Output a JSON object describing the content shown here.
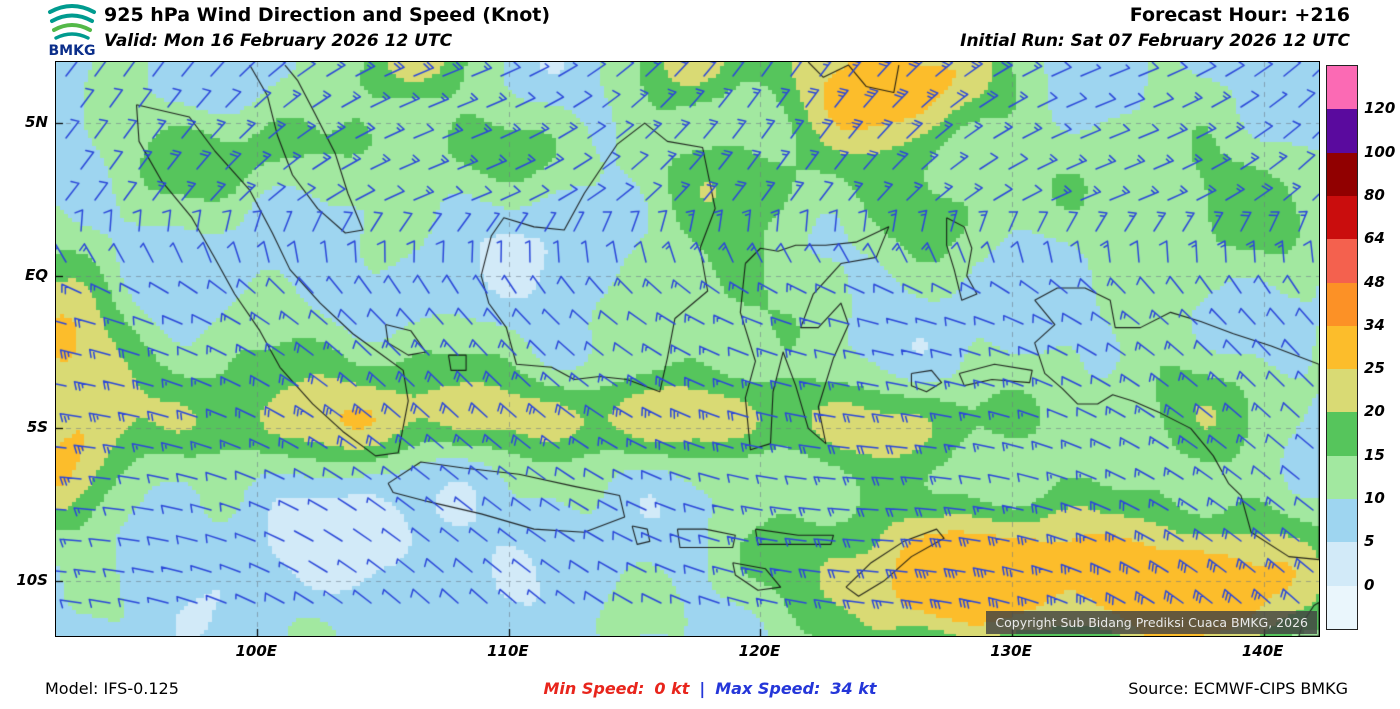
{
  "header": {
    "logo_text": "BMKG",
    "title": "925 hPa Wind Direction and Speed (Knot)",
    "forecast_hour": "Forecast Hour: +216",
    "valid": "Valid: Mon 16 February 2026 12 UTC",
    "initial_run": "Initial Run: Sat 07 February 2026 12 UTC"
  },
  "map": {
    "extent": {
      "lon_min": 92.0,
      "lon_max": 142.2,
      "lat_min": -11.8,
      "lat_max": 7.0
    },
    "lat_labels": [
      {
        "text": "5N",
        "lat": 5
      },
      {
        "text": "EQ",
        "lat": 0
      },
      {
        "text": "5S",
        "lat": -5
      },
      {
        "text": "10S",
        "lat": -10
      }
    ],
    "lon_labels": [
      {
        "text": "100E",
        "lon": 100
      },
      {
        "text": "110E",
        "lon": 110
      },
      {
        "text": "120E",
        "lon": 120
      },
      {
        "text": "130E",
        "lon": 130
      },
      {
        "text": "140E",
        "lon": 140
      }
    ],
    "copyright": "Copyright Sub Bidang Prediksi Cuaca BMKG, 2026",
    "barb_color": "#2b47d9",
    "coast_color": "#111111",
    "wind": {
      "north_from": 52,
      "south_from": 297
    },
    "field": {
      "base": 8,
      "blobs": [
        {
          "lon": 125.0,
          "lat": 6.3,
          "amp": 22,
          "sx": 4.5,
          "sy": 2.2
        },
        {
          "lon": 117.5,
          "lat": 7.2,
          "amp": 14,
          "sx": 2.2,
          "sy": 1.6
        },
        {
          "lon": 106.0,
          "lat": 7.0,
          "amp": 13,
          "sx": 2.6,
          "sy": 1.4
        },
        {
          "lon": 92.2,
          "lat": -2.2,
          "amp": 19,
          "sx": 2.6,
          "sy": 2.4
        },
        {
          "lon": 92.5,
          "lat": -6.6,
          "amp": 16,
          "sx": 2.4,
          "sy": 1.9
        },
        {
          "lon": 100.0,
          "lat": -4.8,
          "amp": 12,
          "sx": 7.0,
          "sy": 1.5
        },
        {
          "lon": 112.0,
          "lat": -4.6,
          "amp": 13,
          "sx": 8.0,
          "sy": 1.4
        },
        {
          "lon": 124.0,
          "lat": -4.9,
          "amp": 12,
          "sx": 7.0,
          "sy": 1.5
        },
        {
          "lon": 128.0,
          "lat": -9.8,
          "amp": 23,
          "sx": 7.0,
          "sy": 2.4
        },
        {
          "lon": 138.0,
          "lat": -10.3,
          "amp": 20,
          "sx": 5.0,
          "sy": 2.6
        },
        {
          "lon": 98.0,
          "lat": 3.9,
          "amp": 9,
          "sx": 5.0,
          "sy": 1.7
        },
        {
          "lon": 108.0,
          "lat": 4.2,
          "amp": 8,
          "sx": 5.0,
          "sy": 1.6
        },
        {
          "lon": 118.0,
          "lat": 3.2,
          "amp": 8,
          "sx": 4.0,
          "sy": 1.6
        },
        {
          "lon": 126.0,
          "lat": 2.2,
          "amp": 8,
          "sx": 3.5,
          "sy": 1.8
        },
        {
          "lon": 138.0,
          "lat": 2.5,
          "amp": 9,
          "sx": 6.0,
          "sy": 2.5
        },
        {
          "lon": 118.0,
          "lat": -0.5,
          "amp": 9,
          "sx": 4.0,
          "sy": 2.5
        },
        {
          "lon": 103.0,
          "lat": -2.8,
          "amp": 7,
          "sx": 6.0,
          "sy": 1.4
        },
        {
          "lon": 137.0,
          "lat": -4.2,
          "amp": 9,
          "sx": 4.0,
          "sy": 2.0
        },
        {
          "lon": 104.0,
          "lat": -8.6,
          "amp": -6,
          "sx": 5.0,
          "sy": 1.8
        },
        {
          "lon": 113.0,
          "lat": 0.4,
          "amp": -5,
          "sx": 3.0,
          "sy": 1.8
        }
      ]
    },
    "coastlines": [
      [
        [
          95.2,
          5.6
        ],
        [
          97.3,
          5.2
        ],
        [
          98.3,
          4.1
        ],
        [
          99.7,
          2.8
        ],
        [
          100.6,
          1.4
        ],
        [
          101.3,
          0.2
        ],
        [
          102.5,
          -0.9
        ],
        [
          103.8,
          -1.9
        ],
        [
          104.8,
          -2.5
        ],
        [
          105.8,
          -3.1
        ],
        [
          106.0,
          -4.1
        ],
        [
          105.6,
          -5.8
        ],
        [
          104.7,
          -5.9
        ],
        [
          103.4,
          -5.1
        ],
        [
          102.2,
          -4.2
        ],
        [
          100.9,
          -3.0
        ],
        [
          100.1,
          -1.8
        ],
        [
          99.1,
          -0.6
        ],
        [
          98.3,
          0.6
        ],
        [
          97.4,
          1.9
        ],
        [
          96.2,
          3.1
        ],
        [
          95.3,
          4.4
        ],
        [
          95.2,
          5.6
        ]
      ],
      [
        [
          105.2,
          -6.8
        ],
        [
          106.5,
          -6.1
        ],
        [
          108.2,
          -6.3
        ],
        [
          110.4,
          -6.5
        ],
        [
          112.6,
          -6.9
        ],
        [
          114.4,
          -7.2
        ],
        [
          114.6,
          -7.9
        ],
        [
          113.0,
          -8.4
        ],
        [
          111.0,
          -8.3
        ],
        [
          108.9,
          -7.8
        ],
        [
          106.8,
          -7.4
        ],
        [
          105.4,
          -7.1
        ],
        [
          105.2,
          -6.8
        ]
      ],
      [
        [
          108.9,
          0.0
        ],
        [
          109.3,
          1.3
        ],
        [
          109.8,
          1.9
        ],
        [
          111.0,
          1.6
        ],
        [
          112.2,
          1.5
        ],
        [
          113.0,
          2.7
        ],
        [
          114.3,
          4.3
        ],
        [
          115.4,
          5.0
        ],
        [
          116.3,
          4.4
        ],
        [
          117.7,
          4.2
        ],
        [
          118.2,
          2.2
        ],
        [
          117.6,
          0.9
        ],
        [
          117.9,
          -0.5
        ],
        [
          116.6,
          -1.4
        ],
        [
          116.3,
          -2.7
        ],
        [
          116.0,
          -3.8
        ],
        [
          114.7,
          -3.4
        ],
        [
          113.6,
          -3.3
        ],
        [
          112.6,
          -3.4
        ],
        [
          111.7,
          -3.0
        ],
        [
          110.3,
          -2.9
        ],
        [
          109.9,
          -1.7
        ],
        [
          109.2,
          -0.9
        ],
        [
          108.9,
          0.0
        ]
      ],
      [
        [
          119.4,
          0.4
        ],
        [
          120.0,
          0.9
        ],
        [
          120.7,
          0.8
        ],
        [
          121.4,
          1.0
        ],
        [
          122.6,
          1.0
        ],
        [
          123.8,
          1.1
        ],
        [
          125.1,
          1.6
        ],
        [
          124.6,
          0.6
        ],
        [
          123.2,
          0.4
        ],
        [
          122.1,
          -0.6
        ],
        [
          121.6,
          -1.7
        ],
        [
          122.3,
          -1.7
        ],
        [
          123.2,
          -0.9
        ],
        [
          123.5,
          -1.6
        ],
        [
          122.9,
          -2.7
        ],
        [
          122.3,
          -4.3
        ],
        [
          122.6,
          -5.5
        ],
        [
          121.9,
          -5.0
        ],
        [
          121.4,
          -3.6
        ],
        [
          120.9,
          -2.5
        ],
        [
          120.5,
          -3.8
        ],
        [
          120.4,
          -5.5
        ],
        [
          119.6,
          -5.7
        ],
        [
          119.4,
          -4.0
        ],
        [
          119.8,
          -2.8
        ],
        [
          119.2,
          -1.2
        ],
        [
          119.4,
          0.4
        ]
      ],
      [
        [
          130.9,
          -0.8
        ],
        [
          131.8,
          -0.4
        ],
        [
          132.9,
          -0.4
        ],
        [
          133.9,
          -0.8
        ],
        [
          134.1,
          -1.7
        ],
        [
          135.1,
          -1.7
        ],
        [
          136.3,
          -1.2
        ],
        [
          137.5,
          -1.5
        ],
        [
          138.8,
          -1.9
        ],
        [
          140.3,
          -2.3
        ],
        [
          142.2,
          -2.9
        ],
        [
          142.2,
          -9.3
        ],
        [
          141.0,
          -9.2
        ],
        [
          139.5,
          -8.4
        ],
        [
          139.1,
          -7.2
        ],
        [
          138.6,
          -6.8
        ],
        [
          138.0,
          -5.9
        ],
        [
          137.1,
          -5.0
        ],
        [
          135.9,
          -4.5
        ],
        [
          134.8,
          -4.1
        ],
        [
          134.0,
          -3.9
        ],
        [
          133.4,
          -4.2
        ],
        [
          132.6,
          -4.2
        ],
        [
          132.0,
          -3.7
        ],
        [
          131.3,
          -3.2
        ],
        [
          130.9,
          -2.2
        ],
        [
          131.7,
          -1.6
        ],
        [
          130.9,
          -0.8
        ]
      ],
      [
        [
          99.7,
          6.9
        ],
        [
          100.4,
          5.9
        ],
        [
          100.8,
          4.6
        ],
        [
          101.4,
          3.3
        ],
        [
          102.4,
          2.2
        ],
        [
          103.5,
          1.4
        ],
        [
          104.2,
          1.5
        ],
        [
          103.6,
          2.7
        ],
        [
          103.1,
          4.0
        ],
        [
          102.3,
          5.3
        ],
        [
          101.6,
          6.4
        ],
        [
          101.1,
          6.9
        ]
      ],
      [
        [
          121.9,
          7.0
        ],
        [
          122.5,
          6.5
        ],
        [
          123.5,
          6.9
        ],
        [
          124.2,
          6.2
        ],
        [
          125.3,
          6.0
        ],
        [
          125.5,
          6.9
        ]
      ],
      [
        [
          114.9,
          -8.2
        ],
        [
          115.5,
          -8.3
        ],
        [
          115.6,
          -8.7
        ],
        [
          115.1,
          -8.8
        ],
        [
          114.9,
          -8.2
        ]
      ],
      [
        [
          116.7,
          -8.3
        ],
        [
          117.8,
          -8.3
        ],
        [
          119.0,
          -8.5
        ],
        [
          118.9,
          -8.9
        ],
        [
          117.6,
          -8.9
        ],
        [
          116.8,
          -8.9
        ],
        [
          116.7,
          -8.3
        ]
      ],
      [
        [
          119.8,
          -8.3
        ],
        [
          121.5,
          -8.5
        ],
        [
          122.9,
          -8.5
        ],
        [
          122.8,
          -8.8
        ],
        [
          121.4,
          -8.8
        ],
        [
          119.9,
          -8.8
        ],
        [
          119.8,
          -8.3
        ]
      ],
      [
        [
          118.9,
          -9.4
        ],
        [
          120.2,
          -9.6
        ],
        [
          120.8,
          -10.2
        ],
        [
          119.9,
          -10.3
        ],
        [
          119.0,
          -9.8
        ],
        [
          118.9,
          -9.4
        ]
      ],
      [
        [
          123.4,
          -10.2
        ],
        [
          124.4,
          -9.4
        ],
        [
          125.7,
          -8.7
        ],
        [
          127.0,
          -8.3
        ],
        [
          127.3,
          -8.6
        ],
        [
          126.0,
          -9.2
        ],
        [
          124.9,
          -10.0
        ],
        [
          123.9,
          -10.5
        ],
        [
          123.4,
          -10.2
        ]
      ],
      [
        [
          127.4,
          1.9
        ],
        [
          128.1,
          1.6
        ],
        [
          128.4,
          0.9
        ],
        [
          128.2,
          0.0
        ],
        [
          128.6,
          -0.6
        ],
        [
          128.0,
          -0.8
        ],
        [
          127.7,
          0.2
        ],
        [
          127.4,
          1.0
        ],
        [
          127.4,
          1.9
        ]
      ],
      [
        [
          127.9,
          -3.2
        ],
        [
          129.3,
          -2.9
        ],
        [
          130.8,
          -3.1
        ],
        [
          130.7,
          -3.5
        ],
        [
          129.2,
          -3.4
        ],
        [
          128.1,
          -3.6
        ],
        [
          127.9,
          -3.2
        ]
      ],
      [
        [
          126.0,
          -3.2
        ],
        [
          126.8,
          -3.1
        ],
        [
          127.2,
          -3.5
        ],
        [
          126.6,
          -3.8
        ],
        [
          126.0,
          -3.6
        ],
        [
          126.0,
          -3.2
        ]
      ],
      [
        [
          105.1,
          -1.6
        ],
        [
          106.1,
          -1.8
        ],
        [
          106.7,
          -2.5
        ],
        [
          106.0,
          -2.6
        ],
        [
          105.2,
          -2.2
        ],
        [
          105.1,
          -1.6
        ]
      ],
      [
        [
          107.6,
          -2.6
        ],
        [
          108.3,
          -2.6
        ],
        [
          108.3,
          -3.1
        ],
        [
          107.7,
          -3.1
        ],
        [
          107.6,
          -2.6
        ]
      ],
      [
        [
          141.4,
          -11.8
        ],
        [
          141.6,
          -11.3
        ],
        [
          142.0,
          -10.8
        ],
        [
          142.2,
          -10.7
        ],
        [
          142.2,
          -11.8
        ],
        [
          141.4,
          -11.8
        ]
      ]
    ]
  },
  "legend": {
    "levels": [
      0,
      5,
      10,
      15,
      20,
      25,
      34,
      48,
      64,
      80,
      100,
      120
    ],
    "colors": [
      "#eaf6fc",
      "#d2eaf8",
      "#9ed5f0",
      "#a2e8a0",
      "#56c55c",
      "#d9da74",
      "#fcbd2b",
      "#fc9126",
      "#f4614e",
      "#ca0d0d",
      "#910000",
      "#5a0a9e",
      "#fb6ab4"
    ]
  },
  "footer": {
    "model": "Model: IFS-0.125",
    "min_label": "Min Speed:",
    "min_value": "0 kt",
    "separator": "|",
    "max_label": "Max Speed:",
    "max_value": "34 kt",
    "source": "Source: ECMWF-CIPS BMKG",
    "min_color": "#e8251c",
    "max_color": "#2436d9"
  }
}
